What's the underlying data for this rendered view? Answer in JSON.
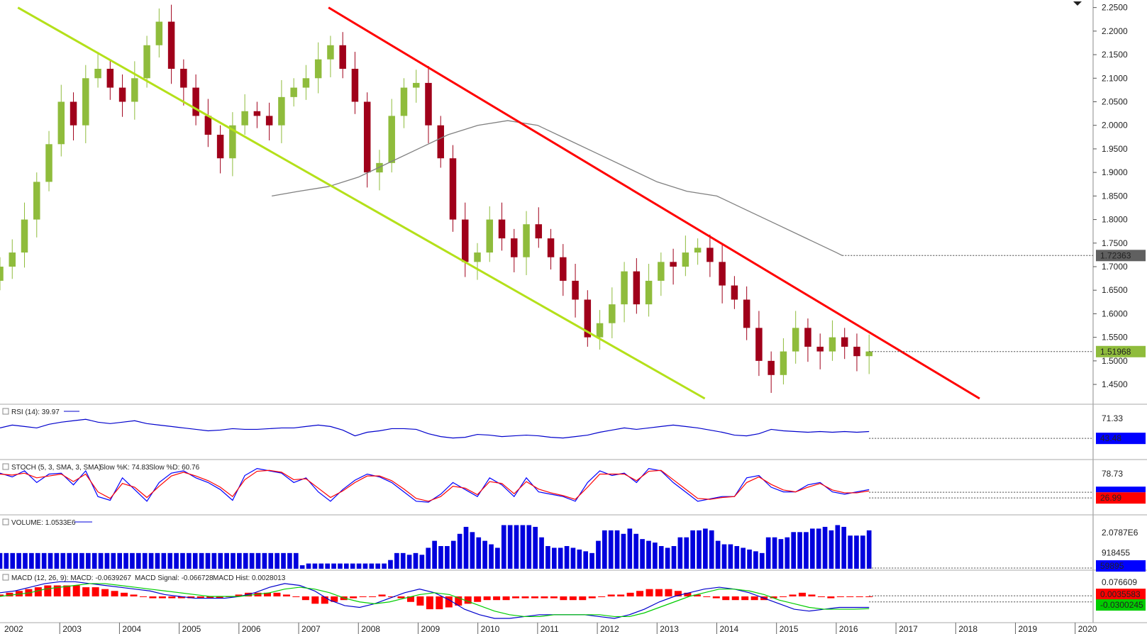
{
  "chart_data": [
    {
      "type": "candlestick",
      "panel": "price",
      "x_axis_labels": [
        "2002",
        "2003",
        "2004",
        "2005",
        "2006",
        "2007",
        "2008",
        "2009",
        "2010",
        "2011",
        "2012",
        "2013",
        "2014",
        "2015",
        "2016",
        "2017",
        "2018",
        "2019",
        "2020"
      ],
      "y_ticks": [
        "2.2500",
        "2.2000",
        "2.1500",
        "2.1000",
        "2.0500",
        "2.0000",
        "1.9500",
        "1.9000",
        "1.8500",
        "1.8000",
        "1.7500",
        "1.7000",
        "1.6500",
        "1.6000",
        "1.5500",
        "1.5000",
        "1.4500"
      ],
      "ylim": [
        1.42,
        2.26
      ],
      "current_price_label": "1.51968",
      "ma_value_label": "1.72363",
      "close_series_approx": [
        1.7,
        1.73,
        1.8,
        1.88,
        1.96,
        2.05,
        2.0,
        2.1,
        2.12,
        2.08,
        2.05,
        2.1,
        2.17,
        2.22,
        2.12,
        2.08,
        2.02,
        1.98,
        1.93,
        2.0,
        2.03,
        2.02,
        2.0,
        2.06,
        2.08,
        2.1,
        2.14,
        2.17,
        2.12,
        2.05,
        1.9,
        1.92,
        2.02,
        2.08,
        2.09,
        2.0,
        1.93,
        1.8,
        1.71,
        1.73,
        1.8,
        1.76,
        1.72,
        1.79,
        1.76,
        1.72,
        1.67,
        1.63,
        1.55,
        1.58,
        1.62,
        1.69,
        1.62,
        1.67,
        1.71,
        1.7,
        1.73,
        1.74,
        1.71,
        1.66,
        1.63,
        1.57,
        1.5,
        1.47,
        1.52,
        1.57,
        1.53,
        1.52,
        1.55,
        1.53,
        1.51,
        1.52
      ],
      "moving_average_points": [
        [
          2006.55,
          1.85
        ],
        [
          2007.0,
          1.86
        ],
        [
          2007.5,
          1.87
        ],
        [
          2008.0,
          1.89
        ],
        [
          2008.5,
          1.92
        ],
        [
          2009.0,
          1.95
        ],
        [
          2009.5,
          1.98
        ],
        [
          2010.0,
          2.0
        ],
        [
          2010.5,
          2.01
        ],
        [
          2011.0,
          2.0
        ],
        [
          2011.5,
          1.97
        ],
        [
          2012.0,
          1.94
        ],
        [
          2012.5,
          1.91
        ],
        [
          2013.0,
          1.88
        ],
        [
          2013.5,
          1.86
        ],
        [
          2014.0,
          1.85
        ],
        [
          2014.5,
          1.82
        ],
        [
          2015.0,
          1.79
        ],
        [
          2015.5,
          1.76
        ],
        [
          2016.0,
          1.73
        ],
        [
          2016.1,
          1.72363
        ]
      ],
      "trendlines": [
        {
          "color": "#ff0000",
          "from": [
            2007.5,
            2.25
          ],
          "to": [
            2018.4,
            1.42
          ]
        },
        {
          "color": "#b4e01a",
          "from": [
            2002.3,
            2.25
          ],
          "to": [
            2013.8,
            1.42
          ]
        }
      ],
      "x_range": [
        2002.0,
        2020.3
      ]
    },
    {
      "type": "line",
      "panel": "rsi",
      "label": "RSI (14): 39.97",
      "y_ticks": [
        "71.33"
      ],
      "current_value_label": "43.48",
      "ylim": [
        20,
        85
      ],
      "values": [
        58,
        62,
        60,
        58,
        63,
        66,
        68,
        70,
        66,
        64,
        66,
        68,
        64,
        62,
        60,
        58,
        56,
        54,
        55,
        57,
        56,
        56,
        57,
        58,
        58,
        60,
        62,
        60,
        55,
        47,
        52,
        54,
        57,
        57,
        56,
        50,
        46,
        44,
        45,
        49,
        48,
        46,
        47,
        48,
        47,
        45,
        44,
        46,
        48,
        52,
        55,
        58,
        56,
        58,
        60,
        62,
        60,
        58,
        55,
        52,
        48,
        47,
        50,
        56,
        54,
        53,
        52,
        53,
        52,
        53,
        52,
        53
      ]
    },
    {
      "type": "line",
      "panel": "stochastic",
      "label": "STOCH (5, 3, SMA, 3, SMA)",
      "k_label": "Slow %K: 74.83",
      "d_label": "Slow %D: 60.76",
      "y_ticks": [
        "78.73"
      ],
      "current_value_label": "26.99",
      "ylim": [
        0,
        100
      ],
      "k_values": [
        80,
        72,
        85,
        60,
        78,
        80,
        55,
        85,
        30,
        22,
        70,
        45,
        20,
        60,
        80,
        85,
        70,
        60,
        45,
        22,
        75,
        90,
        85,
        80,
        60,
        70,
        40,
        20,
        45,
        65,
        78,
        72,
        60,
        40,
        20,
        18,
        35,
        60,
        45,
        30,
        70,
        55,
        30,
        70,
        40,
        35,
        30,
        20,
        60,
        85,
        75,
        80,
        60,
        90,
        85,
        60,
        40,
        20,
        25,
        30,
        30,
        70,
        75,
        50,
        40,
        40,
        55,
        60,
        40,
        35,
        40,
        45
      ],
      "d_values": [
        78,
        76,
        80,
        70,
        74,
        78,
        62,
        78,
        40,
        26,
        58,
        50,
        28,
        52,
        74,
        82,
        74,
        64,
        50,
        30,
        66,
        84,
        86,
        82,
        66,
        68,
        48,
        28,
        42,
        60,
        74,
        74,
        64,
        46,
        26,
        20,
        30,
        52,
        48,
        34,
        62,
        58,
        36,
        62,
        46,
        38,
        32,
        24,
        50,
        78,
        78,
        78,
        64,
        84,
        86,
        66,
        46,
        26,
        24,
        28,
        30,
        60,
        72,
        56,
        44,
        40,
        50,
        58,
        44,
        38,
        38,
        42
      ]
    },
    {
      "type": "bar",
      "panel": "volume",
      "label": "VOLUME: 1.0533E6",
      "y_ticks": [
        "2.0787E6",
        "918455"
      ],
      "current_value_label": "59895",
      "ylim": [
        0,
        2600000
      ],
      "values": [
        0.9,
        0.9,
        0.9,
        0.9,
        0.9,
        0.9,
        0.9,
        0.9,
        0.9,
        0.9,
        0.9,
        0.9,
        0.9,
        0.9,
        0.9,
        0.9,
        0.9,
        0.9,
        0.9,
        0.9,
        0.9,
        0.9,
        0.9,
        0.9,
        0.9,
        0.9,
        0.9,
        0.9,
        0.9,
        0.9,
        0.9,
        0.9,
        0.9,
        0.9,
        0.9,
        0.9,
        0.9,
        0.9,
        0.9,
        0.9,
        0.9,
        0.9,
        0.9,
        0.9,
        0.9,
        0.9,
        0.9,
        0.9,
        0.2,
        0.3,
        0.3,
        0.3,
        0.3,
        0.3,
        0.3,
        0.3,
        0.3,
        0.3,
        0.3,
        0.3,
        0.3,
        0.3,
        0.5,
        0.9,
        0.9,
        0.8,
        0.9,
        0.8,
        1.2,
        1.6,
        1.3,
        1.3,
        1.6,
        2.0,
        2.4,
        2.1,
        1.8,
        1.6,
        1.4,
        1.2,
        2.5,
        2.5,
        2.5,
        2.5,
        2.5,
        2.4,
        1.8,
        1.3,
        1.2,
        1.2,
        1.3,
        1.2,
        1.1,
        1.0,
        0.9,
        1.6,
        2.2,
        2.2,
        2.2,
        2.0,
        2.3,
        2.0,
        1.7,
        1.6,
        1.5,
        1.3,
        1.2,
        1.3,
        1.8,
        1.8,
        2.2,
        2.2,
        2.3,
        2.2,
        1.6,
        1.4,
        1.4,
        1.3,
        1.2,
        1.1,
        1.0,
        0.9,
        1.8,
        1.8,
        1.7,
        1.8,
        2.1,
        2.1,
        2.1,
        2.3,
        2.3,
        2.4,
        2.2,
        2.5,
        2.4,
        1.9,
        1.9,
        1.9,
        2.2
      ],
      "values_unit": "millions"
    },
    {
      "type": "bar",
      "panel": "macd",
      "label_macd": "MACD (12, 26, 9): MACD: -0.0639267",
      "label_signal": "MACD Signal: -0.066728",
      "label_hist": "MACD Hist: 0.0028013",
      "y_ticks": [
        "0.076609"
      ],
      "current_value_labels": [
        "0.0035583",
        "-0.0300245"
      ],
      "ylim": [
        -0.12,
        0.12
      ],
      "hist_values": [
        0.01,
        0.02,
        0.03,
        0.04,
        0.05,
        0.06,
        0.06,
        0.06,
        0.06,
        0.05,
        0.05,
        0.04,
        0.03,
        0.02,
        0.01,
        0.0,
        -0.01,
        -0.01,
        -0.01,
        -0.01,
        -0.01,
        -0.01,
        -0.01,
        -0.01,
        0.0,
        0.01,
        0.02,
        0.02,
        0.02,
        0.02,
        0.01,
        0.0,
        -0.02,
        -0.04,
        -0.04,
        -0.03,
        -0.02,
        -0.01,
        0.0,
        0.0,
        0.01,
        0.0,
        -0.01,
        -0.03,
        -0.05,
        -0.07,
        -0.07,
        -0.06,
        -0.05,
        -0.04,
        -0.03,
        -0.02,
        -0.02,
        -0.02,
        -0.01,
        -0.01,
        -0.01,
        -0.01,
        -0.01,
        -0.02,
        -0.02,
        -0.02,
        -0.01,
        0.0,
        0.01,
        0.01,
        0.02,
        0.03,
        0.04,
        0.04,
        0.04,
        0.03,
        0.02,
        0.01,
        0.0,
        -0.01,
        -0.02,
        -0.02,
        -0.02,
        -0.02,
        -0.02,
        -0.01,
        0.0,
        0.01,
        0.02,
        0.01,
        0.0,
        -0.01,
        0.0,
        0.0,
        0.0,
        0.0
      ],
      "macd_values": [
        0.02,
        0.03,
        0.05,
        0.07,
        0.08,
        0.08,
        0.07,
        0.06,
        0.05,
        0.04,
        0.03,
        0.01,
        0.0,
        -0.01,
        -0.01,
        -0.01,
        0.0,
        0.02,
        0.05,
        0.07,
        0.06,
        0.03,
        -0.02,
        -0.05,
        -0.06,
        -0.04,
        -0.01,
        0.02,
        0.04,
        0.02,
        -0.02,
        -0.07,
        -0.1,
        -0.12,
        -0.12,
        -0.11,
        -0.1,
        -0.1,
        -0.1,
        -0.1,
        -0.11,
        -0.12,
        -0.1,
        -0.07,
        -0.03,
        0.0,
        0.02,
        0.04,
        0.05,
        0.04,
        0.02,
        -0.01,
        -0.04,
        -0.07,
        -0.08,
        -0.07,
        -0.06,
        -0.06,
        -0.06
      ],
      "signal_values": [
        0.0,
        0.01,
        0.02,
        0.04,
        0.05,
        0.06,
        0.07,
        0.07,
        0.06,
        0.05,
        0.04,
        0.03,
        0.02,
        0.01,
        0.0,
        0.0,
        0.0,
        0.01,
        0.02,
        0.04,
        0.05,
        0.04,
        0.02,
        -0.01,
        -0.03,
        -0.04,
        -0.03,
        -0.01,
        0.01,
        0.02,
        0.01,
        -0.02,
        -0.05,
        -0.08,
        -0.1,
        -0.11,
        -0.11,
        -0.1,
        -0.1,
        -0.1,
        -0.1,
        -0.11,
        -0.11,
        -0.09,
        -0.06,
        -0.03,
        0.0,
        0.02,
        0.04,
        0.04,
        0.03,
        0.01,
        -0.02,
        -0.04,
        -0.06,
        -0.07,
        -0.07,
        -0.07,
        -0.067
      ]
    }
  ],
  "colors": {
    "bullish": "#8fbc3c",
    "bearish": "#a0001a",
    "trend_red": "#ff0000",
    "trend_green": "#b4e01a",
    "ma_line": "#808080",
    "rsi_line": "#0000cc",
    "stoch_k": "#0000ff",
    "stoch_d": "#ff0000",
    "volume_bar": "#0000dd",
    "macd_hist": "#ff0000",
    "macd_line": "#0000cc",
    "macd_signal": "#00cc00",
    "label_price_bg": "#8fbc3c",
    "label_ma_bg": "#606060",
    "label_blue_bg": "#0000ff",
    "label_red_bg": "#ff0000",
    "label_green_bg": "#00cc00"
  }
}
